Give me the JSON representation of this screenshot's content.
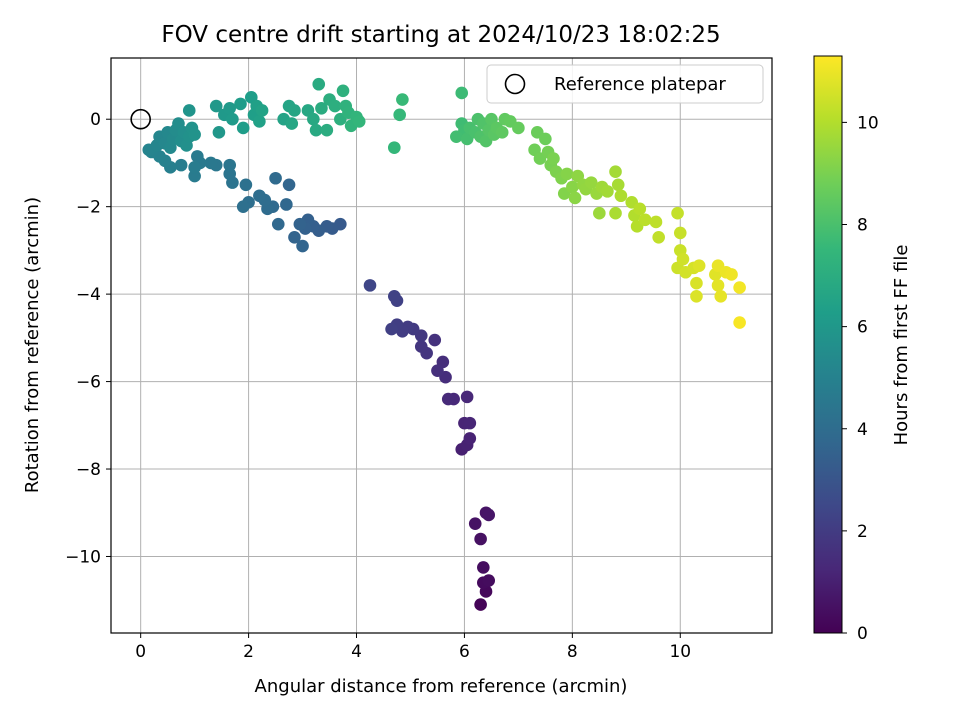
{
  "chart_data": {
    "type": "scatter",
    "title": "FOV centre drift starting at 2024/10/23 18:02:25",
    "xlabel": "Angular distance from reference (arcmin)",
    "ylabel": "Rotation from reference (arcmin)",
    "xlim": [
      -0.55,
      11.7
    ],
    "ylim": [
      -11.75,
      1.4
    ],
    "xticks": [
      0,
      2,
      4,
      6,
      8,
      10
    ],
    "yticks": [
      0,
      -2,
      -4,
      -6,
      -8,
      -10
    ],
    "grid": true,
    "legend": {
      "position": "top-right",
      "entries": [
        "Reference platepar"
      ]
    },
    "reference_point": {
      "x": 0,
      "y": 0
    },
    "colorbar": {
      "label": "Hours from first FF file",
      "range": [
        0,
        11.3
      ],
      "ticks": [
        0,
        2,
        4,
        6,
        8,
        10
      ],
      "colormap": [
        "#440154",
        "#482878",
        "#3e4989",
        "#31688e",
        "#26828e",
        "#1f9e89",
        "#35b779",
        "#6ece58",
        "#b5de2b",
        "#fde725"
      ]
    },
    "points": [
      {
        "x": 6.3,
        "y": -11.1,
        "t": 0.1
      },
      {
        "x": 6.4,
        "y": -10.8,
        "t": 0.2
      },
      {
        "x": 6.35,
        "y": -10.6,
        "t": 0.3
      },
      {
        "x": 6.45,
        "y": -10.55,
        "t": 0.35
      },
      {
        "x": 6.35,
        "y": -10.25,
        "t": 0.4
      },
      {
        "x": 6.3,
        "y": -9.6,
        "t": 0.5
      },
      {
        "x": 6.2,
        "y": -9.25,
        "t": 0.55
      },
      {
        "x": 6.4,
        "y": -9.0,
        "t": 0.6
      },
      {
        "x": 6.45,
        "y": -9.05,
        "t": 0.65
      },
      {
        "x": 5.95,
        "y": -7.55,
        "t": 1.0
      },
      {
        "x": 6.05,
        "y": -7.45,
        "t": 1.05
      },
      {
        "x": 6.1,
        "y": -7.3,
        "t": 1.1
      },
      {
        "x": 6.0,
        "y": -6.95,
        "t": 1.15
      },
      {
        "x": 6.1,
        "y": -6.95,
        "t": 1.2
      },
      {
        "x": 6.05,
        "y": -6.35,
        "t": 1.25
      },
      {
        "x": 5.8,
        "y": -6.4,
        "t": 1.3
      },
      {
        "x": 5.7,
        "y": -6.4,
        "t": 1.35
      },
      {
        "x": 5.65,
        "y": -5.9,
        "t": 1.45
      },
      {
        "x": 5.6,
        "y": -5.55,
        "t": 1.5
      },
      {
        "x": 5.5,
        "y": -5.75,
        "t": 1.55
      },
      {
        "x": 5.45,
        "y": -5.05,
        "t": 1.65
      },
      {
        "x": 5.3,
        "y": -5.35,
        "t": 1.75
      },
      {
        "x": 5.2,
        "y": -5.2,
        "t": 1.8
      },
      {
        "x": 5.2,
        "y": -4.95,
        "t": 1.85
      },
      {
        "x": 5.05,
        "y": -4.8,
        "t": 1.95
      },
      {
        "x": 4.95,
        "y": -4.75,
        "t": 2.0
      },
      {
        "x": 4.85,
        "y": -4.85,
        "t": 2.05
      },
      {
        "x": 4.75,
        "y": -4.7,
        "t": 2.1
      },
      {
        "x": 4.65,
        "y": -4.8,
        "t": 2.15
      },
      {
        "x": 4.75,
        "y": -4.15,
        "t": 2.2
      },
      {
        "x": 4.7,
        "y": -4.05,
        "t": 2.25
      },
      {
        "x": 4.25,
        "y": -3.8,
        "t": 2.4
      },
      {
        "x": 3.7,
        "y": -2.4,
        "t": 3.2
      },
      {
        "x": 3.55,
        "y": -2.5,
        "t": 3.25
      },
      {
        "x": 3.45,
        "y": -2.45,
        "t": 3.3
      },
      {
        "x": 3.3,
        "y": -2.55,
        "t": 3.35
      },
      {
        "x": 3.2,
        "y": -2.45,
        "t": 3.4
      },
      {
        "x": 3.1,
        "y": -2.3,
        "t": 3.45
      },
      {
        "x": 3.05,
        "y": -2.5,
        "t": 3.5
      },
      {
        "x": 2.95,
        "y": -2.4,
        "t": 3.55
      },
      {
        "x": 2.85,
        "y": -2.7,
        "t": 3.6
      },
      {
        "x": 3.0,
        "y": -2.9,
        "t": 3.65
      },
      {
        "x": 2.75,
        "y": -1.5,
        "t": 3.7
      },
      {
        "x": 2.7,
        "y": -1.95,
        "t": 3.75
      },
      {
        "x": 2.55,
        "y": -2.4,
        "t": 3.8
      },
      {
        "x": 2.45,
        "y": -2.0,
        "t": 3.85
      },
      {
        "x": 2.5,
        "y": -1.35,
        "t": 3.9
      },
      {
        "x": 2.35,
        "y": -2.05,
        "t": 3.95
      },
      {
        "x": 2.3,
        "y": -1.85,
        "t": 4.0
      },
      {
        "x": 2.2,
        "y": -1.75,
        "t": 4.05
      },
      {
        "x": 2.0,
        "y": -1.9,
        "t": 4.1
      },
      {
        "x": 1.9,
        "y": -2.0,
        "t": 4.15
      },
      {
        "x": 1.95,
        "y": -1.5,
        "t": 4.2
      },
      {
        "x": 1.7,
        "y": -1.45,
        "t": 4.3
      },
      {
        "x": 1.65,
        "y": -1.25,
        "t": 4.35
      },
      {
        "x": 1.65,
        "y": -1.05,
        "t": 4.4
      },
      {
        "x": 1.4,
        "y": -1.05,
        "t": 4.5
      },
      {
        "x": 1.3,
        "y": -1.0,
        "t": 4.55
      },
      {
        "x": 1.1,
        "y": -1.0,
        "t": 4.6
      },
      {
        "x": 1.05,
        "y": -0.85,
        "t": 4.65
      },
      {
        "x": 1.0,
        "y": -1.3,
        "t": 4.7
      },
      {
        "x": 1.0,
        "y": -1.1,
        "t": 4.75
      },
      {
        "x": 0.75,
        "y": -1.05,
        "t": 4.8
      },
      {
        "x": 0.55,
        "y": -1.1,
        "t": 4.9
      },
      {
        "x": 0.45,
        "y": -0.95,
        "t": 4.95
      },
      {
        "x": 0.35,
        "y": -0.85,
        "t": 5.0
      },
      {
        "x": 0.2,
        "y": -0.75,
        "t": 5.05
      },
      {
        "x": 0.15,
        "y": -0.7,
        "t": 5.1
      },
      {
        "x": 0.3,
        "y": -0.6,
        "t": 5.15
      },
      {
        "x": 0.35,
        "y": -0.4,
        "t": 5.2
      },
      {
        "x": 0.45,
        "y": -0.55,
        "t": 5.25
      },
      {
        "x": 0.5,
        "y": -0.3,
        "t": 5.3
      },
      {
        "x": 0.55,
        "y": -0.65,
        "t": 5.35
      },
      {
        "x": 0.6,
        "y": -0.45,
        "t": 5.4
      },
      {
        "x": 0.65,
        "y": -0.25,
        "t": 5.45
      },
      {
        "x": 0.7,
        "y": -0.1,
        "t": 5.5
      },
      {
        "x": 0.75,
        "y": -0.5,
        "t": 5.55
      },
      {
        "x": 0.8,
        "y": -0.3,
        "t": 5.6
      },
      {
        "x": 0.85,
        "y": -0.6,
        "t": 5.65
      },
      {
        "x": 0.9,
        "y": -0.4,
        "t": 5.7
      },
      {
        "x": 0.95,
        "y": -0.2,
        "t": 5.75
      },
      {
        "x": 1.0,
        "y": -0.35,
        "t": 5.8
      },
      {
        "x": 0.9,
        "y": 0.2,
        "t": 5.85
      },
      {
        "x": 1.45,
        "y": -0.3,
        "t": 5.95
      },
      {
        "x": 1.4,
        "y": 0.3,
        "t": 6.0
      },
      {
        "x": 1.55,
        "y": 0.1,
        "t": 6.05
      },
      {
        "x": 1.65,
        "y": 0.25,
        "t": 6.1
      },
      {
        "x": 1.7,
        "y": 0.0,
        "t": 6.15
      },
      {
        "x": 1.85,
        "y": 0.35,
        "t": 6.2
      },
      {
        "x": 1.9,
        "y": -0.2,
        "t": 6.25
      },
      {
        "x": 2.05,
        "y": 0.5,
        "t": 6.3
      },
      {
        "x": 2.1,
        "y": 0.1,
        "t": 6.35
      },
      {
        "x": 2.15,
        "y": 0.3,
        "t": 6.4
      },
      {
        "x": 2.2,
        "y": -0.05,
        "t": 6.45
      },
      {
        "x": 2.25,
        "y": 0.2,
        "t": 6.5
      },
      {
        "x": 2.65,
        "y": 0.0,
        "t": 6.55
      },
      {
        "x": 2.75,
        "y": 0.3,
        "t": 6.6
      },
      {
        "x": 2.85,
        "y": 0.2,
        "t": 6.65
      },
      {
        "x": 2.8,
        "y": -0.1,
        "t": 6.7
      },
      {
        "x": 3.1,
        "y": 0.2,
        "t": 6.75
      },
      {
        "x": 3.2,
        "y": 0.0,
        "t": 6.8
      },
      {
        "x": 3.25,
        "y": -0.25,
        "t": 6.85
      },
      {
        "x": 3.3,
        "y": 0.8,
        "t": 6.9
      },
      {
        "x": 3.35,
        "y": 0.25,
        "t": 6.95
      },
      {
        "x": 3.45,
        "y": -0.25,
        "t": 7.0
      },
      {
        "x": 3.5,
        "y": 0.45,
        "t": 7.05
      },
      {
        "x": 3.6,
        "y": 0.3,
        "t": 7.1
      },
      {
        "x": 3.7,
        "y": 0.0,
        "t": 7.15
      },
      {
        "x": 3.75,
        "y": 0.65,
        "t": 7.2
      },
      {
        "x": 3.8,
        "y": 0.3,
        "t": 7.25
      },
      {
        "x": 3.85,
        "y": 0.15,
        "t": 7.3
      },
      {
        "x": 3.9,
        "y": -0.15,
        "t": 7.35
      },
      {
        "x": 4.0,
        "y": 0.05,
        "t": 7.4
      },
      {
        "x": 4.05,
        "y": -0.05,
        "t": 7.45
      },
      {
        "x": 4.7,
        "y": -0.65,
        "t": 7.5
      },
      {
        "x": 4.8,
        "y": 0.1,
        "t": 7.55
      },
      {
        "x": 4.85,
        "y": 0.45,
        "t": 7.6
      },
      {
        "x": 5.95,
        "y": 0.6,
        "t": 7.7
      },
      {
        "x": 5.95,
        "y": -0.1,
        "t": 7.75
      },
      {
        "x": 6.0,
        "y": -0.25,
        "t": 7.8
      },
      {
        "x": 5.85,
        "y": -0.4,
        "t": 7.85
      },
      {
        "x": 6.05,
        "y": -0.45,
        "t": 7.9
      },
      {
        "x": 6.1,
        "y": -0.2,
        "t": 7.95
      },
      {
        "x": 6.2,
        "y": -0.3,
        "t": 8.0
      },
      {
        "x": 6.25,
        "y": 0.0,
        "t": 8.05
      },
      {
        "x": 6.3,
        "y": -0.4,
        "t": 8.1
      },
      {
        "x": 6.35,
        "y": -0.1,
        "t": 8.15
      },
      {
        "x": 6.4,
        "y": -0.5,
        "t": 8.2
      },
      {
        "x": 6.45,
        "y": -0.25,
        "t": 8.25
      },
      {
        "x": 6.5,
        "y": 0.0,
        "t": 8.3
      },
      {
        "x": 6.55,
        "y": -0.35,
        "t": 8.35
      },
      {
        "x": 6.6,
        "y": -0.2,
        "t": 8.4
      },
      {
        "x": 6.7,
        "y": -0.3,
        "t": 8.45
      },
      {
        "x": 6.75,
        "y": 0.0,
        "t": 8.5
      },
      {
        "x": 6.85,
        "y": -0.05,
        "t": 8.55
      },
      {
        "x": 7.0,
        "y": -0.2,
        "t": 8.6
      },
      {
        "x": 7.35,
        "y": -0.3,
        "t": 8.7
      },
      {
        "x": 7.5,
        "y": -0.45,
        "t": 8.75
      },
      {
        "x": 7.3,
        "y": -0.7,
        "t": 8.8
      },
      {
        "x": 7.4,
        "y": -0.9,
        "t": 8.85
      },
      {
        "x": 7.55,
        "y": -0.75,
        "t": 8.9
      },
      {
        "x": 7.6,
        "y": -1.05,
        "t": 8.95
      },
      {
        "x": 7.65,
        "y": -0.9,
        "t": 9.0
      },
      {
        "x": 7.7,
        "y": -1.2,
        "t": 9.05
      },
      {
        "x": 7.8,
        "y": -1.35,
        "t": 9.1
      },
      {
        "x": 7.85,
        "y": -1.7,
        "t": 9.15
      },
      {
        "x": 7.9,
        "y": -1.25,
        "t": 9.2
      },
      {
        "x": 8.0,
        "y": -1.55,
        "t": 9.25
      },
      {
        "x": 8.05,
        "y": -1.8,
        "t": 9.3
      },
      {
        "x": 8.1,
        "y": -1.3,
        "t": 9.35
      },
      {
        "x": 8.2,
        "y": -1.5,
        "t": 9.4
      },
      {
        "x": 8.25,
        "y": -1.6,
        "t": 9.45
      },
      {
        "x": 8.35,
        "y": -1.45,
        "t": 9.5
      },
      {
        "x": 8.45,
        "y": -1.7,
        "t": 9.55
      },
      {
        "x": 8.5,
        "y": -2.15,
        "t": 9.6
      },
      {
        "x": 8.55,
        "y": -1.55,
        "t": 9.65
      },
      {
        "x": 8.65,
        "y": -1.65,
        "t": 9.7
      },
      {
        "x": 8.8,
        "y": -1.2,
        "t": 9.75
      },
      {
        "x": 8.85,
        "y": -1.5,
        "t": 9.8
      },
      {
        "x": 8.8,
        "y": -2.15,
        "t": 9.85
      },
      {
        "x": 8.9,
        "y": -1.75,
        "t": 9.9
      },
      {
        "x": 9.1,
        "y": -1.9,
        "t": 9.95
      },
      {
        "x": 9.15,
        "y": -2.2,
        "t": 10.0
      },
      {
        "x": 9.2,
        "y": -2.45,
        "t": 10.05
      },
      {
        "x": 9.25,
        "y": -2.05,
        "t": 10.1
      },
      {
        "x": 9.35,
        "y": -2.3,
        "t": 10.15
      },
      {
        "x": 9.55,
        "y": -2.35,
        "t": 10.2
      },
      {
        "x": 9.6,
        "y": -2.7,
        "t": 10.25
      },
      {
        "x": 9.95,
        "y": -2.15,
        "t": 10.3
      },
      {
        "x": 10.0,
        "y": -2.6,
        "t": 10.35
      },
      {
        "x": 10.0,
        "y": -3.0,
        "t": 10.4
      },
      {
        "x": 9.95,
        "y": -3.4,
        "t": 10.45
      },
      {
        "x": 10.05,
        "y": -3.2,
        "t": 10.5
      },
      {
        "x": 10.1,
        "y": -3.5,
        "t": 10.55
      },
      {
        "x": 10.25,
        "y": -3.4,
        "t": 10.6
      },
      {
        "x": 10.3,
        "y": -3.75,
        "t": 10.65
      },
      {
        "x": 10.3,
        "y": -4.05,
        "t": 10.7
      },
      {
        "x": 10.35,
        "y": -3.35,
        "t": 10.75
      },
      {
        "x": 10.65,
        "y": -3.55,
        "t": 10.8
      },
      {
        "x": 10.7,
        "y": -3.8,
        "t": 10.85
      },
      {
        "x": 10.75,
        "y": -4.05,
        "t": 10.9
      },
      {
        "x": 10.7,
        "y": -3.35,
        "t": 10.95
      },
      {
        "x": 10.85,
        "y": -3.5,
        "t": 11.0
      },
      {
        "x": 10.95,
        "y": -3.55,
        "t": 11.05
      },
      {
        "x": 11.1,
        "y": -3.85,
        "t": 11.1
      },
      {
        "x": 11.1,
        "y": -4.65,
        "t": 11.2
      }
    ]
  }
}
